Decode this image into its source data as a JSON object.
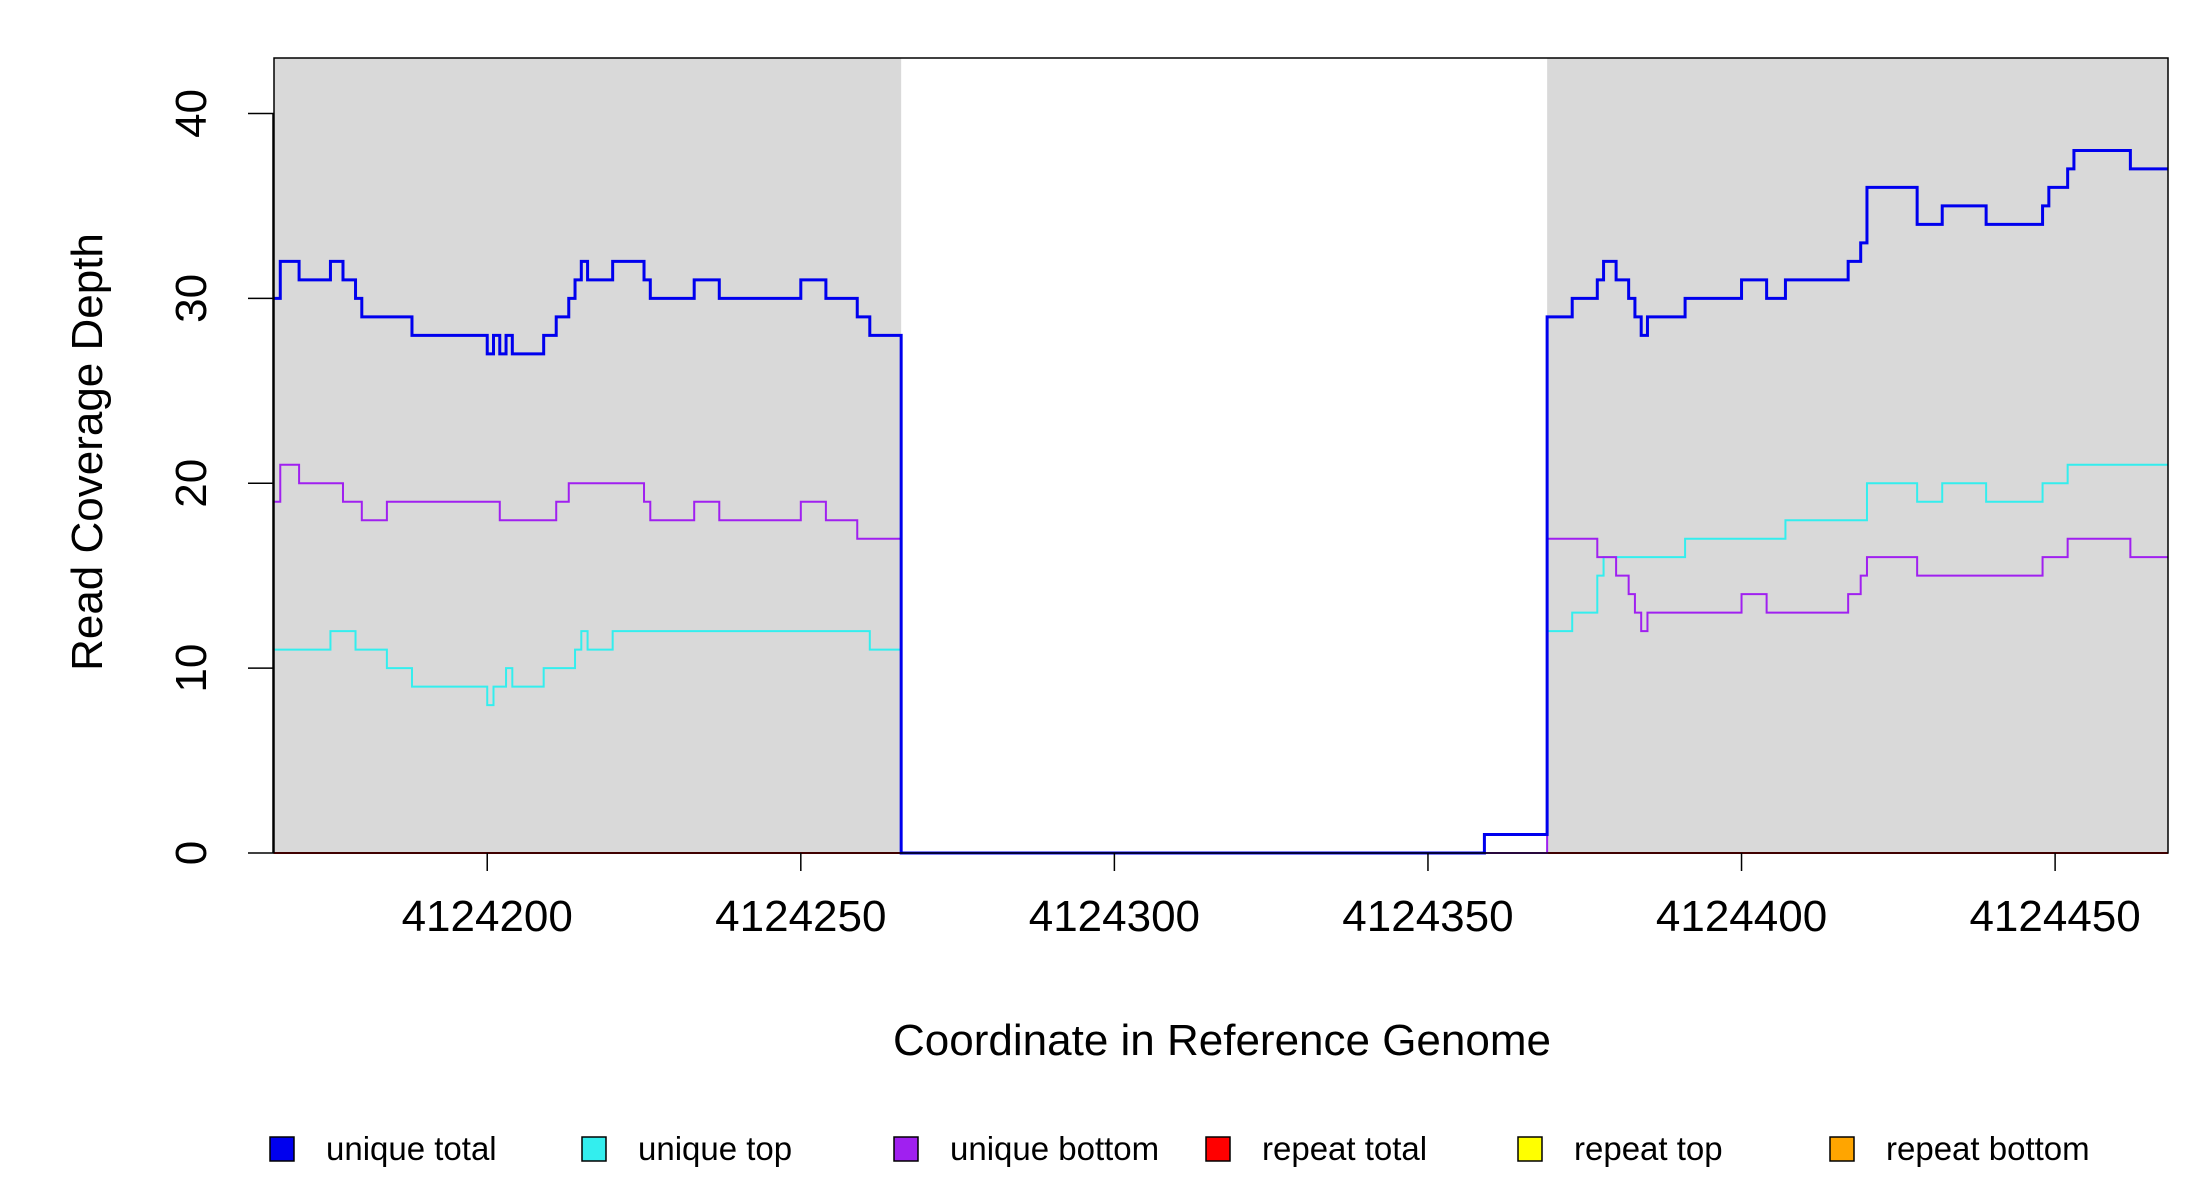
{
  "chart_data": {
    "type": "line",
    "step": true,
    "xlabel": "Coordinate in Reference Genome",
    "ylabel": "Read Coverage Depth",
    "xlim": [
      4124166,
      4124468
    ],
    "ylim": [
      0,
      43
    ],
    "xticks": [
      4124200,
      4124250,
      4124300,
      4124350,
      4124400,
      4124450
    ],
    "yticks": [
      0,
      10,
      20,
      30,
      40
    ],
    "shaded_regions": [
      {
        "start": 4124166,
        "end": 4124266,
        "color": "#d9d9d9"
      },
      {
        "start": 4124369,
        "end": 4124468,
        "color": "#d9d9d9"
      }
    ],
    "legend_position": "bottom",
    "series": [
      {
        "name": "unique total",
        "color": "#0000ee",
        "points": [
          [
            4124166,
            30
          ],
          [
            4124167,
            32
          ],
          [
            4124170,
            31
          ],
          [
            4124175,
            32
          ],
          [
            4124177,
            31
          ],
          [
            4124179,
            30
          ],
          [
            4124180,
            29
          ],
          [
            4124188,
            28
          ],
          [
            4124200,
            27
          ],
          [
            4124201,
            28
          ],
          [
            4124202,
            27
          ],
          [
            4124203,
            28
          ],
          [
            4124204,
            27
          ],
          [
            4124209,
            28
          ],
          [
            4124211,
            29
          ],
          [
            4124213,
            30
          ],
          [
            4124214,
            31
          ],
          [
            4124215,
            32
          ],
          [
            4124216,
            31
          ],
          [
            4124220,
            32
          ],
          [
            4124225,
            31
          ],
          [
            4124226,
            30
          ],
          [
            4124233,
            31
          ],
          [
            4124237,
            30
          ],
          [
            4124250,
            31
          ],
          [
            4124254,
            30
          ],
          [
            4124259,
            29
          ],
          [
            4124261,
            28
          ],
          [
            4124266,
            0
          ],
          [
            4124359,
            1
          ],
          [
            4124369,
            29
          ],
          [
            4124373,
            30
          ],
          [
            4124377,
            31
          ],
          [
            4124378,
            32
          ],
          [
            4124380,
            31
          ],
          [
            4124382,
            30
          ],
          [
            4124383,
            29
          ],
          [
            4124384,
            28
          ],
          [
            4124385,
            29
          ],
          [
            4124391,
            30
          ],
          [
            4124400,
            31
          ],
          [
            4124404,
            30
          ],
          [
            4124407,
            31
          ],
          [
            4124417,
            32
          ],
          [
            4124419,
            33
          ],
          [
            4124420,
            36
          ],
          [
            4124428,
            34
          ],
          [
            4124432,
            35
          ],
          [
            4124439,
            34
          ],
          [
            4124448,
            35
          ],
          [
            4124449,
            36
          ],
          [
            4124452,
            37
          ],
          [
            4124453,
            38
          ],
          [
            4124462,
            37
          ],
          [
            4124468,
            37
          ]
        ]
      },
      {
        "name": "unique top",
        "color": "#33eeee",
        "points": [
          [
            4124166,
            11
          ],
          [
            4124175,
            12
          ],
          [
            4124179,
            11
          ],
          [
            4124184,
            10
          ],
          [
            4124188,
            9
          ],
          [
            4124200,
            8
          ],
          [
            4124201,
            9
          ],
          [
            4124203,
            10
          ],
          [
            4124204,
            9
          ],
          [
            4124209,
            10
          ],
          [
            4124214,
            11
          ],
          [
            4124215,
            12
          ],
          [
            4124216,
            11
          ],
          [
            4124220,
            12
          ],
          [
            4124261,
            11
          ],
          [
            4124266,
            0
          ],
          [
            4124359,
            1
          ],
          [
            4124369,
            12
          ],
          [
            4124373,
            13
          ],
          [
            4124377,
            15
          ],
          [
            4124378,
            16
          ],
          [
            4124391,
            17
          ],
          [
            4124407,
            18
          ],
          [
            4124420,
            20
          ],
          [
            4124428,
            19
          ],
          [
            4124432,
            20
          ],
          [
            4124439,
            19
          ],
          [
            4124448,
            20
          ],
          [
            4124452,
            21
          ],
          [
            4124468,
            21
          ]
        ]
      },
      {
        "name": "unique bottom",
        "color": "#a020f0",
        "points": [
          [
            4124166,
            19
          ],
          [
            4124167,
            21
          ],
          [
            4124170,
            20
          ],
          [
            4124177,
            19
          ],
          [
            4124180,
            18
          ],
          [
            4124184,
            19
          ],
          [
            4124202,
            18
          ],
          [
            4124211,
            19
          ],
          [
            4124213,
            20
          ],
          [
            4124225,
            19
          ],
          [
            4124226,
            18
          ],
          [
            4124233,
            19
          ],
          [
            4124237,
            18
          ],
          [
            4124250,
            19
          ],
          [
            4124254,
            18
          ],
          [
            4124259,
            17
          ],
          [
            4124266,
            0
          ],
          [
            4124369,
            17
          ],
          [
            4124377,
            16
          ],
          [
            4124380,
            15
          ],
          [
            4124382,
            14
          ],
          [
            4124383,
            13
          ],
          [
            4124384,
            12
          ],
          [
            4124385,
            13
          ],
          [
            4124400,
            14
          ],
          [
            4124404,
            13
          ],
          [
            4124417,
            14
          ],
          [
            4124419,
            15
          ],
          [
            4124420,
            16
          ],
          [
            4124428,
            15
          ],
          [
            4124448,
            16
          ],
          [
            4124452,
            17
          ],
          [
            4124462,
            16
          ],
          [
            4124468,
            16
          ]
        ]
      },
      {
        "name": "repeat total",
        "color": "#ff0000",
        "points": [
          [
            4124166,
            0
          ],
          [
            4124468,
            0
          ]
        ]
      },
      {
        "name": "repeat top",
        "color": "#ffff00",
        "points": [
          [
            4124166,
            0
          ],
          [
            4124468,
            0
          ]
        ]
      },
      {
        "name": "repeat bottom",
        "color": "#ffa500",
        "points": [
          [
            4124166,
            0
          ],
          [
            4124468,
            0
          ]
        ]
      }
    ]
  }
}
